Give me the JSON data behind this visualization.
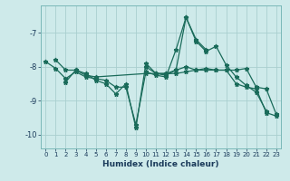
{
  "xlabel": "Humidex (Indice chaleur)",
  "bg_color": "#ceeaea",
  "grid_color": "#aacfcf",
  "line_color": "#1a6b5a",
  "xlim": [
    -0.5,
    23.5
  ],
  "ylim": [
    -10.4,
    -6.2
  ],
  "yticks": [
    -10,
    -9,
    -8,
    -7
  ],
  "xticks": [
    0,
    1,
    2,
    3,
    4,
    5,
    6,
    7,
    8,
    9,
    10,
    11,
    12,
    13,
    14,
    15,
    16,
    17,
    18,
    19,
    20,
    21,
    22,
    23
  ],
  "series": [
    {
      "x": [
        0,
        1,
        2,
        3,
        4,
        5,
        6,
        7,
        8,
        9,
        10,
        11,
        12,
        13,
        14,
        15,
        16,
        17,
        18,
        19,
        20,
        21,
        22
      ],
      "y": [
        -7.85,
        -8.05,
        -8.35,
        -8.15,
        -8.3,
        -8.35,
        -8.4,
        -8.6,
        -8.6,
        -9.7,
        -8.15,
        -8.25,
        -8.3,
        -7.5,
        -6.55,
        -7.25,
        -7.55,
        -7.4,
        -7.95,
        -8.3,
        -8.55,
        -8.75,
        -9.3
      ]
    },
    {
      "x": [
        1,
        2,
        3,
        4,
        5,
        6,
        7,
        8,
        9,
        10,
        11,
        12,
        13,
        14,
        15,
        16,
        17,
        18,
        19,
        20,
        21,
        22,
        23
      ],
      "y": [
        -7.8,
        -8.1,
        -8.1,
        -8.2,
        -8.4,
        -8.5,
        -8.8,
        -8.5,
        -9.8,
        -7.9,
        -8.2,
        -8.2,
        -8.2,
        -8.15,
        -8.1,
        -8.1,
        -8.1,
        -8.1,
        -8.1,
        -8.05,
        -8.6,
        -8.65,
        -9.4
      ]
    },
    {
      "x": [
        2,
        3,
        4,
        5,
        10,
        11,
        12,
        13,
        14,
        15,
        16,
        17,
        18,
        19,
        20,
        21,
        22,
        23
      ],
      "y": [
        -8.45,
        -8.1,
        -8.25,
        -8.3,
        -8.2,
        -8.2,
        -8.2,
        -8.1,
        -8.0,
        -8.1,
        -8.05,
        -8.1,
        -8.1,
        -8.5,
        -8.6,
        -8.65,
        -9.35,
        -9.45
      ]
    },
    {
      "x": [
        10,
        11,
        12,
        13,
        14,
        15,
        16
      ],
      "y": [
        -8.0,
        -8.2,
        -8.25,
        -8.1,
        -6.55,
        -7.2,
        -7.5
      ]
    }
  ]
}
